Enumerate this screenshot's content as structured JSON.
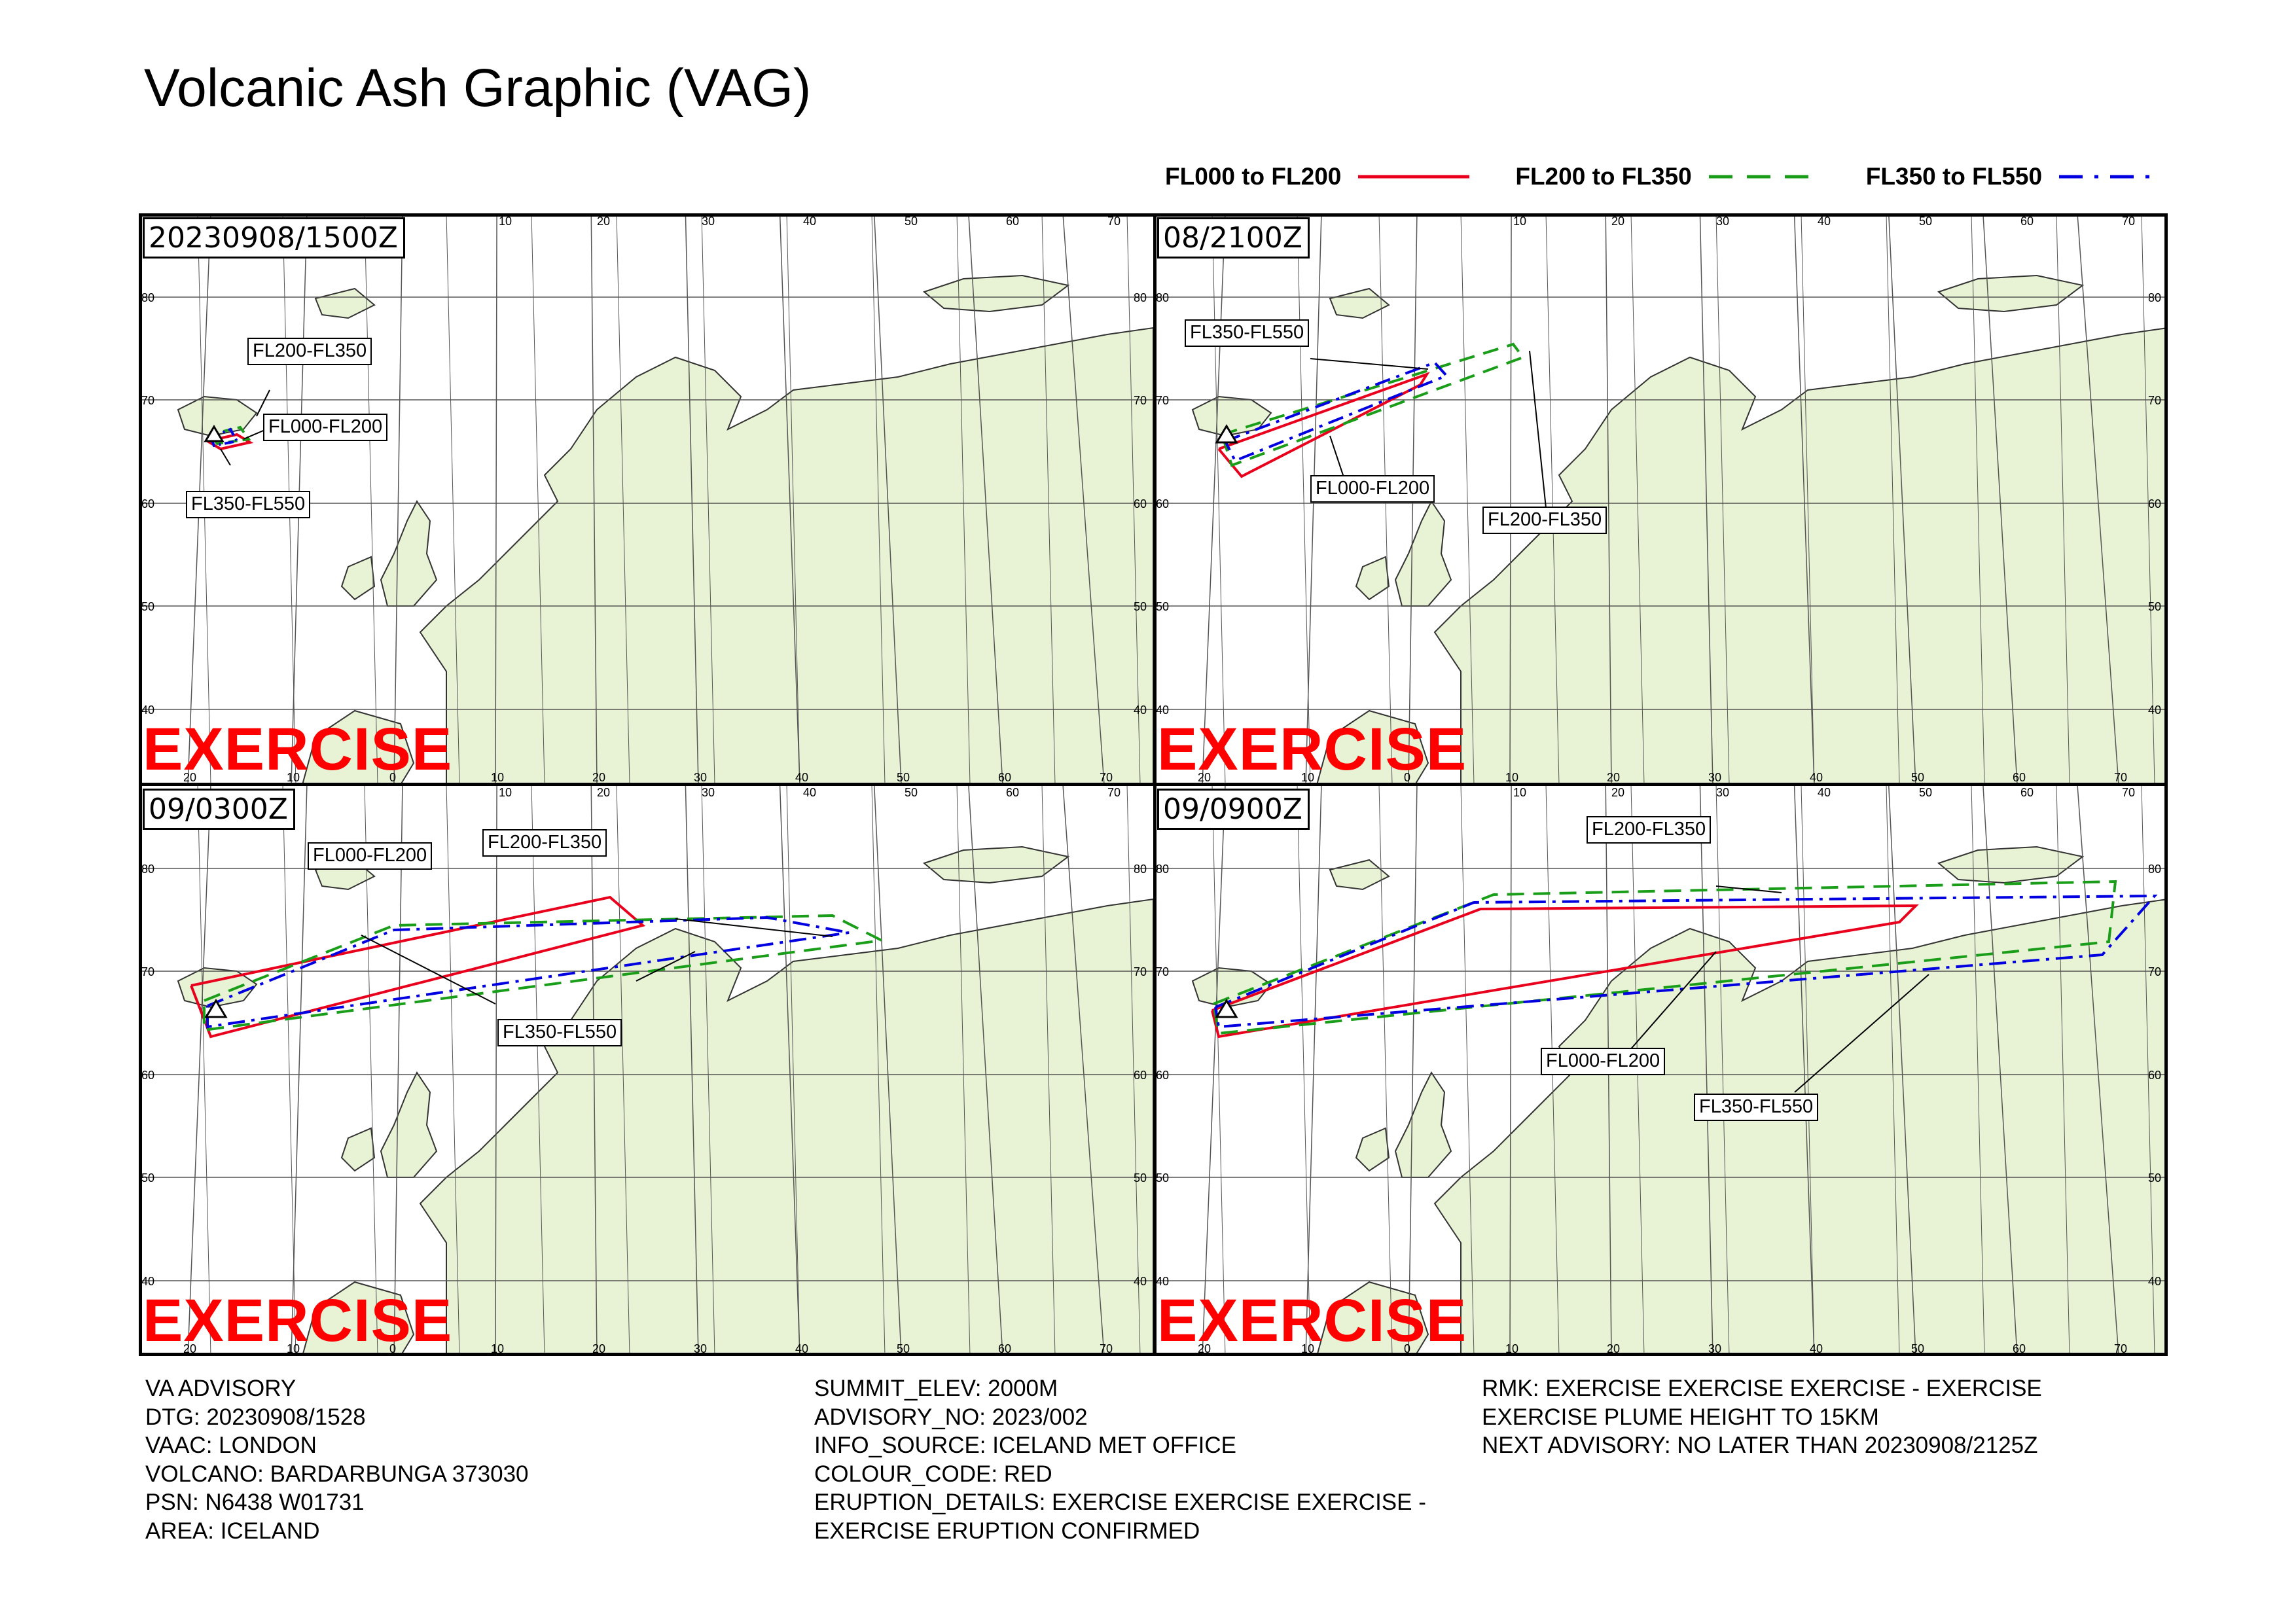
{
  "title": "Volcanic Ash Graphic (VAG)",
  "legend": [
    {
      "label": "FL000 to FL200",
      "color": "#e8001c",
      "style": "solid"
    },
    {
      "label": "FL200 to FL350",
      "color": "#1a9e1a",
      "style": "dashed"
    },
    {
      "label": "FL350 to FL550",
      "color": "#0000e0",
      "style": "dashdot"
    }
  ],
  "panels": [
    {
      "time": "20230908/1500Z",
      "watermark": "EXERCISE",
      "callouts": [
        "FL200-FL350",
        "FL000-FL200",
        "FL350-FL550"
      ]
    },
    {
      "time": "08/2100Z",
      "watermark": "EXERCISE",
      "callouts": [
        "FL350-FL550",
        "FL000-FL200",
        "FL200-FL350"
      ]
    },
    {
      "time": "09/0300Z",
      "watermark": "EXERCISE",
      "callouts": [
        "FL000-FL200",
        "FL200-FL350",
        "FL350-FL550"
      ]
    },
    {
      "time": "09/0900Z",
      "watermark": "EXERCISE",
      "callouts": [
        "FL200-FL350",
        "FL000-FL200",
        "FL350-FL550"
      ]
    }
  ],
  "map": {
    "lon_top_labels": [
      "10",
      "20",
      "30",
      "40",
      "50",
      "60",
      "70"
    ],
    "lon_bottom_labels": [
      "20",
      "10",
      "0",
      "10",
      "20",
      "30",
      "40",
      "50",
      "60",
      "70"
    ],
    "lat_labels": [
      "80",
      "70",
      "60",
      "50",
      "40"
    ],
    "land_color": "#e8f2d4",
    "border_color": "#333333"
  },
  "info": {
    "col1": [
      "VA ADVISORY",
      "DTG: 20230908/1528",
      "VAAC: LONDON",
      "VOLCANO: BARDARBUNGA 373030",
      "PSN: N6438 W01731",
      "AREA: ICELAND"
    ],
    "col2": [
      "SUMMIT_ELEV: 2000M",
      "ADVISORY_NO: 2023/002",
      "INFO_SOURCE: ICELAND MET OFFICE",
      "COLOUR_CODE: RED",
      "ERUPTION_DETAILS: EXERCISE EXERCISE EXERCISE -",
      "EXERCISE ERUPTION CONFIRMED"
    ],
    "col3": [
      "RMK: EXERCISE EXERCISE EXERCISE - EXERCISE",
      "EXERCISE PLUME HEIGHT TO 15KM",
      "NEXT ADVISORY: NO LATER THAN 20230908/2125Z"
    ]
  }
}
